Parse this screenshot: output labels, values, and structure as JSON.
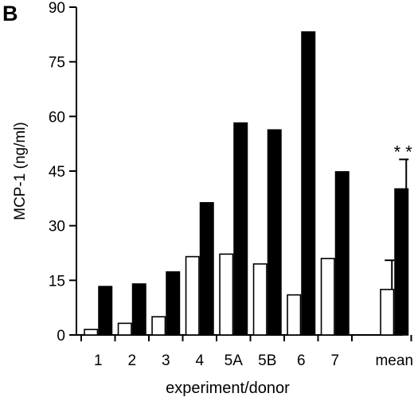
{
  "panel_label": "B",
  "chart_data": {
    "type": "bar",
    "xlabel": "experiment/donor",
    "ylabel": "MCP-1 (ng/ml)",
    "ylim": [
      0,
      90
    ],
    "yticks": [
      0,
      15,
      30,
      45,
      60,
      75,
      90
    ],
    "categories": [
      "1",
      "2",
      "3",
      "4",
      "5A",
      "5B",
      "6",
      "7",
      "mean"
    ],
    "series": [
      {
        "fill": "#ffffff",
        "stroke": "#000000",
        "values": [
          1.5,
          3.2,
          5,
          21.5,
          22.2,
          19.5,
          11,
          21,
          12.5
        ],
        "error_upper": [
          null,
          null,
          null,
          null,
          null,
          null,
          null,
          null,
          20.5
        ]
      },
      {
        "fill": "#000000",
        "stroke": "#000000",
        "values": [
          13.3,
          14,
          17.3,
          36.3,
          58.2,
          56.3,
          83.2,
          44.8,
          40.1
        ],
        "error_upper": [
          null,
          null,
          null,
          null,
          null,
          null,
          null,
          null,
          48.2
        ]
      }
    ],
    "annotations": [
      {
        "text": "* *",
        "category": "mean"
      }
    ],
    "grid": false,
    "legend": "none"
  }
}
